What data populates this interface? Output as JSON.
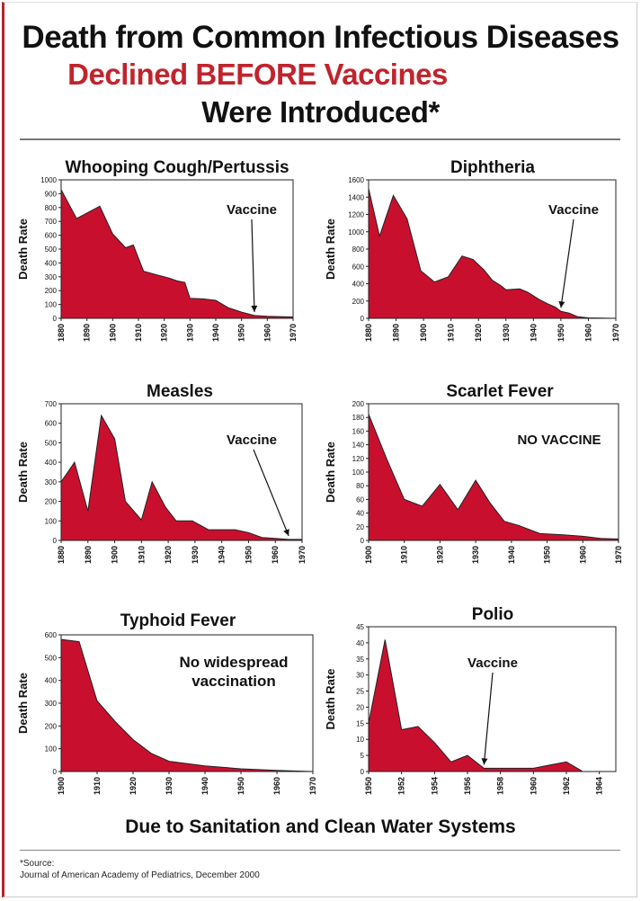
{
  "title": {
    "line1": "Death from Common Infectious Diseases",
    "line2": "Declined BEFORE Vaccines",
    "line3": "Were Introduced*"
  },
  "footer": {
    "main": "Due to Sanitation and Clean Water Systems",
    "source_label": "*Source:",
    "source_text": "Journal of American Academy of Pediatrics, December 2000"
  },
  "colors": {
    "fill": "#c8102e",
    "title_accent": "#c0242d",
    "text": "#111111"
  },
  "chart_data": [
    {
      "type": "area",
      "title": "Whooping Cough/Pertussis",
      "ylabel": "Death Rate",
      "ylim": [
        0,
        1000
      ],
      "yticks": [
        0,
        100,
        200,
        300,
        400,
        500,
        600,
        700,
        800,
        900,
        1000
      ],
      "xlim": [
        1880,
        1970
      ],
      "xticks": [
        1880,
        1890,
        1900,
        1910,
        1920,
        1930,
        1940,
        1950,
        1960,
        1970
      ],
      "annotation": "Vaccine",
      "arrow_x": 1955,
      "x": [
        1880,
        1886,
        1891,
        1895,
        1900,
        1905,
        1908,
        1912,
        1918,
        1922,
        1925,
        1928,
        1930,
        1935,
        1940,
        1945,
        1950,
        1955,
        1960,
        1970
      ],
      "y": [
        930,
        720,
        770,
        810,
        610,
        510,
        530,
        340,
        310,
        290,
        270,
        260,
        145,
        140,
        130,
        75,
        45,
        20,
        15,
        10
      ]
    },
    {
      "type": "area",
      "title": "Diphtheria",
      "ylabel": "Death Rate",
      "ylim": [
        0,
        1600
      ],
      "yticks": [
        0,
        200,
        400,
        600,
        800,
        1000,
        1200,
        1400,
        1600
      ],
      "xlim": [
        1880,
        1970
      ],
      "xticks": [
        1880,
        1890,
        1900,
        1910,
        1920,
        1930,
        1940,
        1950,
        1960,
        1970
      ],
      "annotation": "Vaccine",
      "arrow_x": 1950,
      "x": [
        1880,
        1884,
        1889,
        1894,
        1899,
        1904,
        1909,
        1914,
        1918,
        1922,
        1925,
        1928,
        1930,
        1935,
        1938,
        1942,
        1945,
        1948,
        1950,
        1953,
        1956,
        1960,
        1970
      ],
      "y": [
        1500,
        950,
        1420,
        1150,
        550,
        420,
        480,
        720,
        680,
        560,
        440,
        380,
        330,
        340,
        300,
        220,
        170,
        130,
        80,
        60,
        20,
        5,
        0
      ]
    },
    {
      "type": "area",
      "title": "Measles",
      "ylabel": "Death Rate",
      "ylim": [
        0,
        700
      ],
      "yticks": [
        0,
        100,
        200,
        300,
        400,
        500,
        600,
        700
      ],
      "xlim": [
        1880,
        1970
      ],
      "xticks": [
        1880,
        1890,
        1900,
        1910,
        1920,
        1930,
        1940,
        1950,
        1960,
        1970
      ],
      "annotation": "Vaccine",
      "arrow_x": 1965,
      "x": [
        1880,
        1885,
        1890,
        1895,
        1900,
        1904,
        1910,
        1914,
        1919,
        1923,
        1929,
        1935,
        1940,
        1945,
        1950,
        1955,
        1960,
        1965,
        1970
      ],
      "y": [
        300,
        400,
        150,
        640,
        520,
        200,
        105,
        300,
        170,
        100,
        100,
        55,
        55,
        55,
        40,
        15,
        10,
        5,
        5
      ]
    },
    {
      "type": "area",
      "title": "Scarlet Fever",
      "ylabel": "Death Rate",
      "ylim": [
        0,
        200
      ],
      "yticks": [
        0,
        20,
        40,
        60,
        80,
        100,
        120,
        140,
        160,
        180,
        200
      ],
      "xlim": [
        1900,
        1970
      ],
      "xticks": [
        1900,
        1910,
        1920,
        1930,
        1940,
        1950,
        1960,
        1970
      ],
      "annotation": "NO VACCINE",
      "x": [
        1900,
        1905,
        1910,
        1915,
        1920,
        1925,
        1930,
        1934,
        1938,
        1942,
        1948,
        1955,
        1960,
        1965,
        1970
      ],
      "y": [
        185,
        120,
        60,
        50,
        82,
        45,
        88,
        55,
        28,
        22,
        10,
        8,
        6,
        3,
        2
      ]
    },
    {
      "type": "area",
      "title": "Typhoid Fever",
      "ylabel": "Death Rate",
      "ylim": [
        0,
        600
      ],
      "yticks": [
        0,
        100,
        200,
        300,
        400,
        500,
        600
      ],
      "xlim": [
        1900,
        1970
      ],
      "xticks": [
        1900,
        1910,
        1920,
        1930,
        1940,
        1950,
        1960,
        1970
      ],
      "annotation": "No widespread vaccination",
      "x": [
        1900,
        1905,
        1910,
        1915,
        1920,
        1925,
        1930,
        1940,
        1950,
        1960,
        1970
      ],
      "y": [
        580,
        570,
        310,
        220,
        140,
        80,
        45,
        25,
        12,
        5,
        0
      ]
    },
    {
      "type": "area",
      "title": "Polio",
      "ylabel": "Death Rate",
      "ylim": [
        0,
        45
      ],
      "yticks": [
        0,
        5,
        10,
        15,
        20,
        25,
        30,
        35,
        40,
        45
      ],
      "xlim": [
        1950,
        1965
      ],
      "xticks": [
        1950,
        1952,
        1954,
        1956,
        1958,
        1960,
        1962,
        1964
      ],
      "annotation": "Vaccine",
      "arrow_x": 1957,
      "x": [
        1950,
        1951,
        1952,
        1953,
        1954,
        1955,
        1956,
        1957,
        1958,
        1959,
        1960,
        1961,
        1962,
        1963,
        1964
      ],
      "y": [
        15,
        41,
        13,
        14,
        9,
        3,
        5,
        1,
        1,
        1,
        1,
        2,
        3,
        0,
        0
      ]
    }
  ]
}
